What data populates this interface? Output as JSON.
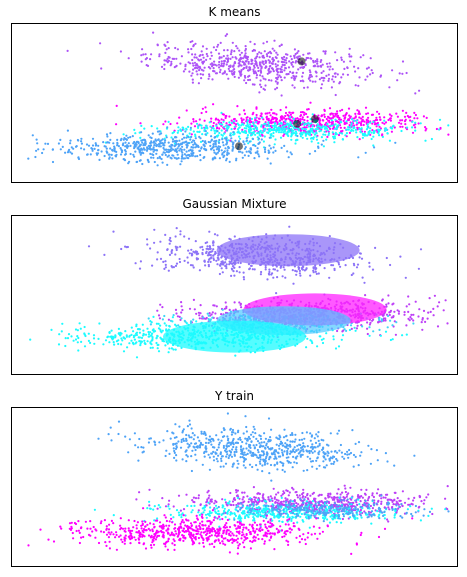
{
  "figure": {
    "background": "#ffffff"
  },
  "chart_data": [
    {
      "type": "scatter",
      "title": "K means",
      "xlabel": "",
      "ylabel": "",
      "xlim": [
        0,
        100
      ],
      "ylim": [
        0,
        100
      ],
      "axis_ticks": "none",
      "grid": false,
      "clusters": [
        {
          "color": "#ad53f7",
          "center": [
            55,
            74
          ],
          "spread": [
            22,
            11
          ],
          "count": 620
        },
        {
          "color": "#ff00ff",
          "center": [
            67,
            38
          ],
          "spread": [
            25,
            7
          ],
          "count": 600
        },
        {
          "color": "#1cfbff",
          "center": [
            62,
            33
          ],
          "spread": [
            25,
            6
          ],
          "count": 520
        },
        {
          "color": "#4ea3f7",
          "center": [
            36,
            22
          ],
          "spread": [
            24,
            8
          ],
          "count": 600
        }
      ],
      "centroids": [
        {
          "x": 65,
          "y": 76
        },
        {
          "x": 64,
          "y": 37
        },
        {
          "x": 68,
          "y": 40
        },
        {
          "x": 51,
          "y": 23
        }
      ]
    },
    {
      "type": "scatter",
      "title": "Gaussian Mixture",
      "xlabel": "",
      "ylabel": "",
      "xlim": [
        0,
        100
      ],
      "ylim": [
        0,
        100
      ],
      "axis_ticks": "none",
      "grid": false,
      "clusters": [
        {
          "color": "#8c73f7",
          "center": [
            55,
            74
          ],
          "spread": [
            22,
            11
          ],
          "count": 620
        },
        {
          "color": "#bd3ff7",
          "center": [
            67,
            38
          ],
          "spread": [
            25,
            8
          ],
          "count": 650
        },
        {
          "color": "#1cfbff",
          "center": [
            42,
            24
          ],
          "spread": [
            28,
            8
          ],
          "count": 600
        },
        {
          "color": "#3fd5f7",
          "center": [
            60,
            33
          ],
          "spread": [
            20,
            6
          ],
          "count": 300
        }
      ],
      "ellipses": [
        {
          "color": "#8c73f7",
          "cx": 62,
          "cy": 78,
          "rx": 16,
          "ry": 10,
          "opacity": 0.75
        },
        {
          "color": "#ff22ff",
          "cx": 68,
          "cy": 41,
          "rx": 16,
          "ry": 10,
          "opacity": 0.75
        },
        {
          "color": "#4ec8ff",
          "cx": 61,
          "cy": 34,
          "rx": 15,
          "ry": 9,
          "opacity": 0.7
        },
        {
          "color": "#1cfbff",
          "cx": 50,
          "cy": 24,
          "rx": 16,
          "ry": 10,
          "opacity": 0.75
        }
      ]
    },
    {
      "type": "scatter",
      "title": "Y train",
      "xlabel": "",
      "ylabel": "",
      "xlim": [
        0,
        100
      ],
      "ylim": [
        0,
        100
      ],
      "axis_ticks": "none",
      "grid": false,
      "clusters": [
        {
          "color": "#4ea3f7",
          "center": [
            55,
            74
          ],
          "spread": [
            22,
            11
          ],
          "count": 620
        },
        {
          "color": "#bd3ff7",
          "center": [
            67,
            40
          ],
          "spread": [
            25,
            7
          ],
          "count": 600
        },
        {
          "color": "#1cfbff",
          "center": [
            60,
            34
          ],
          "spread": [
            24,
            6
          ],
          "count": 450
        },
        {
          "color": "#4ea3f7",
          "center": [
            70,
            36
          ],
          "spread": [
            18,
            5
          ],
          "count": 250
        },
        {
          "color": "#ff00ff",
          "center": [
            40,
            22
          ],
          "spread": [
            26,
            8
          ],
          "count": 650
        }
      ]
    }
  ]
}
